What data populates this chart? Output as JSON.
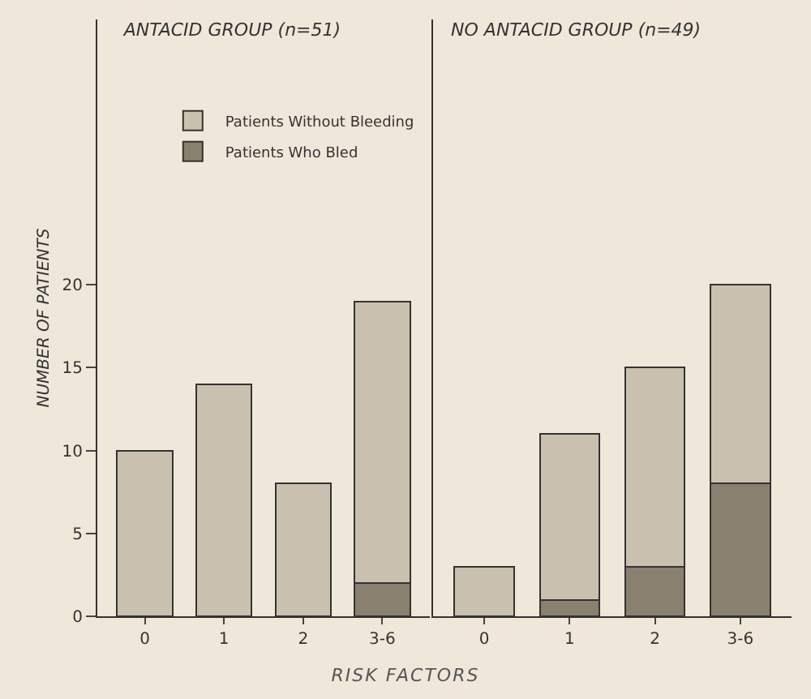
{
  "chart_data": [
    {
      "type": "bar",
      "title": "ANTACID GROUP (n=51)",
      "xlabel": "RISK FACTORS",
      "ylabel": "NUMBER OF PATIENTS",
      "categories": [
        "0",
        "1",
        "2",
        "3-6"
      ],
      "stacked": true,
      "ylim": [
        0,
        36
      ],
      "yticks": [
        0,
        5,
        10,
        15,
        20
      ],
      "legend": "top right",
      "grid": false,
      "series": [
        {
          "name": "Patients Who Bled",
          "color": "#8a8070",
          "values": [
            0,
            0,
            0,
            2
          ]
        },
        {
          "name": "Patients Without Bleeding",
          "color": "#c9c0b0",
          "values": [
            10,
            14,
            8,
            17
          ]
        }
      ]
    },
    {
      "type": "bar",
      "title": "NO ANTACID GROUP (n=49)",
      "categories": [
        "0",
        "1",
        "2",
        "3-6"
      ],
      "stacked": true,
      "ylim": [
        0,
        36
      ],
      "yticks": [
        0,
        5,
        10,
        15,
        20
      ],
      "tick_labels": "x",
      "grid": false,
      "series": [
        {
          "color": "#8a8070",
          "values": [
            0,
            1,
            3,
            8
          ]
        },
        {
          "color": "#c9c0b0",
          "values": [
            3,
            10,
            12,
            12
          ]
        }
      ]
    }
  ]
}
